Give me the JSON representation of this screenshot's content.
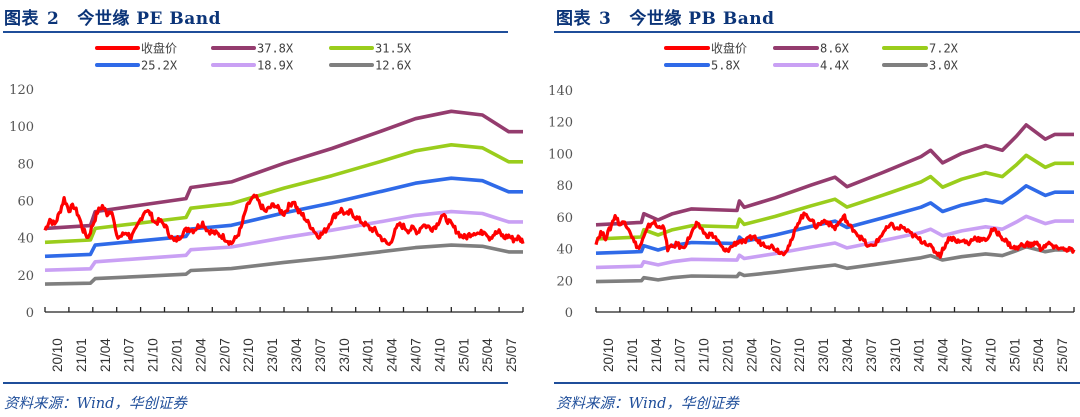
{
  "panels": [
    {
      "title_prefix": "图表",
      "title_number": "2",
      "title_text": "今世缘 PE Band",
      "source": "资料来源：Wind，华创证券"
    },
    {
      "title_prefix": "图表",
      "title_number": "3",
      "title_text": "今世缘 PB Band",
      "source": "资料来源：Wind，华创证券"
    }
  ],
  "chart_data": [
    {
      "type": "line",
      "title": "今世缘 PE Band",
      "xlabel": "",
      "ylabel": "",
      "ylim": [
        0,
        120
      ],
      "yticks": [
        0,
        20,
        40,
        60,
        80,
        100,
        120
      ],
      "categories": [
        "20/10",
        "21/01",
        "21/04",
        "21/07",
        "21/10",
        "22/01",
        "22/04",
        "22/07",
        "22/10",
        "23/01",
        "23/04",
        "23/07",
        "23/10",
        "24/01",
        "24/04",
        "24/07",
        "24/10",
        "25/01",
        "25/04",
        "25/07"
      ],
      "legend": "top-center",
      "grid": false,
      "x": [
        0,
        1.9,
        2.1,
        4,
        5.9,
        6.1,
        7.8,
        10,
        12,
        14,
        15.5,
        17,
        18.3,
        19.4,
        20
      ],
      "band_base": [
        45,
        46.5,
        54,
        57.5,
        61,
        67,
        70,
        80,
        88,
        97,
        104,
        108,
        106,
        97,
        97
      ],
      "series": [
        {
          "name": "收盘价",
          "color": "#ff0000",
          "multiple": null,
          "x": [
            0,
            0.2,
            0.4,
            0.6,
            0.8,
            1.0,
            1.2,
            1.4,
            1.6,
            1.8,
            2.0,
            2.2,
            2.4,
            2.6,
            2.8,
            3.0,
            3.2,
            3.4,
            3.6,
            3.8,
            4.0,
            4.2,
            4.4,
            4.6,
            4.8,
            5.0,
            5.2,
            5.4,
            5.6,
            5.8,
            6.0,
            6.2,
            6.4,
            6.6,
            6.8,
            7.0,
            7.2,
            7.4,
            7.6,
            7.8,
            8.0,
            8.2,
            8.4,
            8.6,
            8.8,
            9.0,
            9.2,
            9.4,
            9.6,
            9.8,
            10.0,
            10.2,
            10.4,
            10.6,
            10.8,
            11.0,
            11.2,
            11.4,
            11.6,
            11.8,
            12.0,
            12.2,
            12.4,
            12.6,
            12.8,
            13.0,
            13.2,
            13.4,
            13.6,
            13.8,
            14.0,
            14.2,
            14.4,
            14.6,
            14.8,
            15.0,
            15.2,
            15.4,
            15.6,
            15.8,
            16.0,
            16.2,
            16.4,
            16.6,
            16.8,
            17.0,
            17.2,
            17.4,
            17.6,
            17.8,
            18.0,
            18.2,
            18.4,
            18.6,
            18.8,
            19.0,
            19.2,
            19.4,
            19.6,
            19.8,
            20.0
          ],
          "values": [
            44,
            50,
            47,
            53,
            61,
            55,
            57,
            52,
            44,
            40,
            47,
            54,
            57,
            53,
            55,
            40,
            41,
            43,
            40,
            44,
            50,
            55,
            53,
            48,
            49,
            47,
            42,
            38,
            40,
            43,
            45,
            44,
            46,
            48,
            44,
            43,
            42,
            41,
            39,
            37,
            40,
            45,
            55,
            60,
            62,
            58,
            54,
            56,
            58,
            55,
            53,
            57,
            60,
            54,
            52,
            48,
            45,
            41,
            42,
            45,
            50,
            53,
            55,
            52,
            54,
            51,
            49,
            47,
            45,
            44,
            41,
            38,
            36,
            42,
            47,
            46,
            44,
            45,
            43,
            47,
            46,
            45,
            47,
            52,
            50,
            47,
            44,
            41,
            40,
            42,
            43,
            42,
            44,
            40,
            42,
            43,
            40,
            41,
            39,
            40,
            38
          ]
        },
        {
          "name": "37.8X",
          "color": "#943c6e",
          "multiple": 37.8
        },
        {
          "name": "31.5X",
          "color": "#9acd1c",
          "multiple": 31.5
        },
        {
          "name": "25.2X",
          "color": "#2f6ae8",
          "multiple": 25.2
        },
        {
          "name": "18.9X",
          "color": "#c9a0f4",
          "multiple": 18.9
        },
        {
          "name": "12.6X",
          "color": "#7f7f7f",
          "multiple": 12.6
        }
      ]
    },
    {
      "type": "line",
      "title": "今世缘 PB Band",
      "xlabel": "",
      "ylabel": "",
      "ylim": [
        0,
        140
      ],
      "yticks": [
        0,
        20,
        40,
        60,
        80,
        100,
        120,
        140
      ],
      "categories": [
        "20/10",
        "21/01",
        "21/04",
        "21/07",
        "21/10",
        "22/01",
        "22/04",
        "22/07",
        "22/10",
        "23/01",
        "23/04",
        "23/07",
        "23/10",
        "24/01",
        "24/04",
        "24/07",
        "24/10",
        "25/01",
        "25/04",
        "25/07"
      ],
      "legend": "top-center",
      "grid": false,
      "x": [
        0,
        1.9,
        2.0,
        2.6,
        3.2,
        4.0,
        5.9,
        6.0,
        6.2,
        7.5,
        9.0,
        10.0,
        10.5,
        12.0,
        13.6,
        14.0,
        14.5,
        15.3,
        16.3,
        17.0,
        17.6,
        18.0,
        18.8,
        19.2,
        20.0
      ],
      "band_base": [
        55,
        56.5,
        62,
        58,
        62,
        65,
        64,
        70,
        66,
        72,
        80,
        85,
        79,
        88,
        98,
        102,
        94,
        100,
        105,
        102,
        111,
        118,
        109,
        112,
        112
      ],
      "series": [
        {
          "name": "收盘价",
          "color": "#ff0000",
          "multiple": null,
          "x": [
            0,
            0.2,
            0.4,
            0.6,
            0.8,
            1.0,
            1.2,
            1.4,
            1.6,
            1.8,
            2.0,
            2.2,
            2.4,
            2.6,
            2.8,
            3.0,
            3.2,
            3.4,
            3.6,
            3.8,
            4.0,
            4.2,
            4.4,
            4.6,
            4.8,
            5.0,
            5.2,
            5.4,
            5.6,
            5.8,
            6.0,
            6.2,
            6.4,
            6.6,
            6.8,
            7.0,
            7.2,
            7.4,
            7.6,
            7.8,
            8.0,
            8.2,
            8.4,
            8.6,
            8.8,
            9.0,
            9.2,
            9.4,
            9.6,
            9.8,
            10.0,
            10.2,
            10.4,
            10.6,
            10.8,
            11.0,
            11.2,
            11.4,
            11.6,
            11.8,
            12.0,
            12.2,
            12.4,
            12.6,
            12.8,
            13.0,
            13.2,
            13.4,
            13.6,
            13.8,
            14.0,
            14.2,
            14.4,
            14.6,
            14.8,
            15.0,
            15.2,
            15.4,
            15.6,
            15.8,
            16.0,
            16.2,
            16.4,
            16.6,
            16.8,
            17.0,
            17.2,
            17.4,
            17.6,
            17.8,
            18.0,
            18.2,
            18.4,
            18.6,
            18.8,
            19.0,
            19.2,
            19.4,
            19.6,
            19.8,
            20.0
          ],
          "values": [
            44,
            50,
            47,
            53,
            61,
            55,
            57,
            52,
            44,
            40,
            47,
            54,
            57,
            53,
            55,
            40,
            41,
            43,
            40,
            44,
            50,
            55,
            53,
            48,
            49,
            47,
            42,
            38,
            40,
            43,
            45,
            44,
            46,
            48,
            44,
            43,
            42,
            41,
            39,
            37,
            40,
            45,
            55,
            60,
            62,
            58,
            54,
            56,
            58,
            55,
            53,
            57,
            60,
            54,
            52,
            48,
            45,
            41,
            42,
            45,
            50,
            53,
            55,
            52,
            54,
            51,
            49,
            47,
            45,
            44,
            41,
            38,
            36,
            42,
            47,
            46,
            44,
            45,
            43,
            47,
            46,
            45,
            47,
            52,
            50,
            47,
            44,
            41,
            40,
            42,
            43,
            42,
            44,
            40,
            42,
            43,
            40,
            41,
            39,
            40,
            38
          ]
        },
        {
          "name": "8.6X",
          "color": "#943c6e",
          "multiple": 8.6
        },
        {
          "name": "7.2X",
          "color": "#9acd1c",
          "multiple": 7.2
        },
        {
          "name": "5.8X",
          "color": "#2f6ae8",
          "multiple": 5.8
        },
        {
          "name": "4.4X",
          "color": "#c9a0f4",
          "multiple": 4.4
        },
        {
          "name": "3.0X",
          "color": "#7f7f7f",
          "multiple": 3.0
        }
      ]
    }
  ]
}
